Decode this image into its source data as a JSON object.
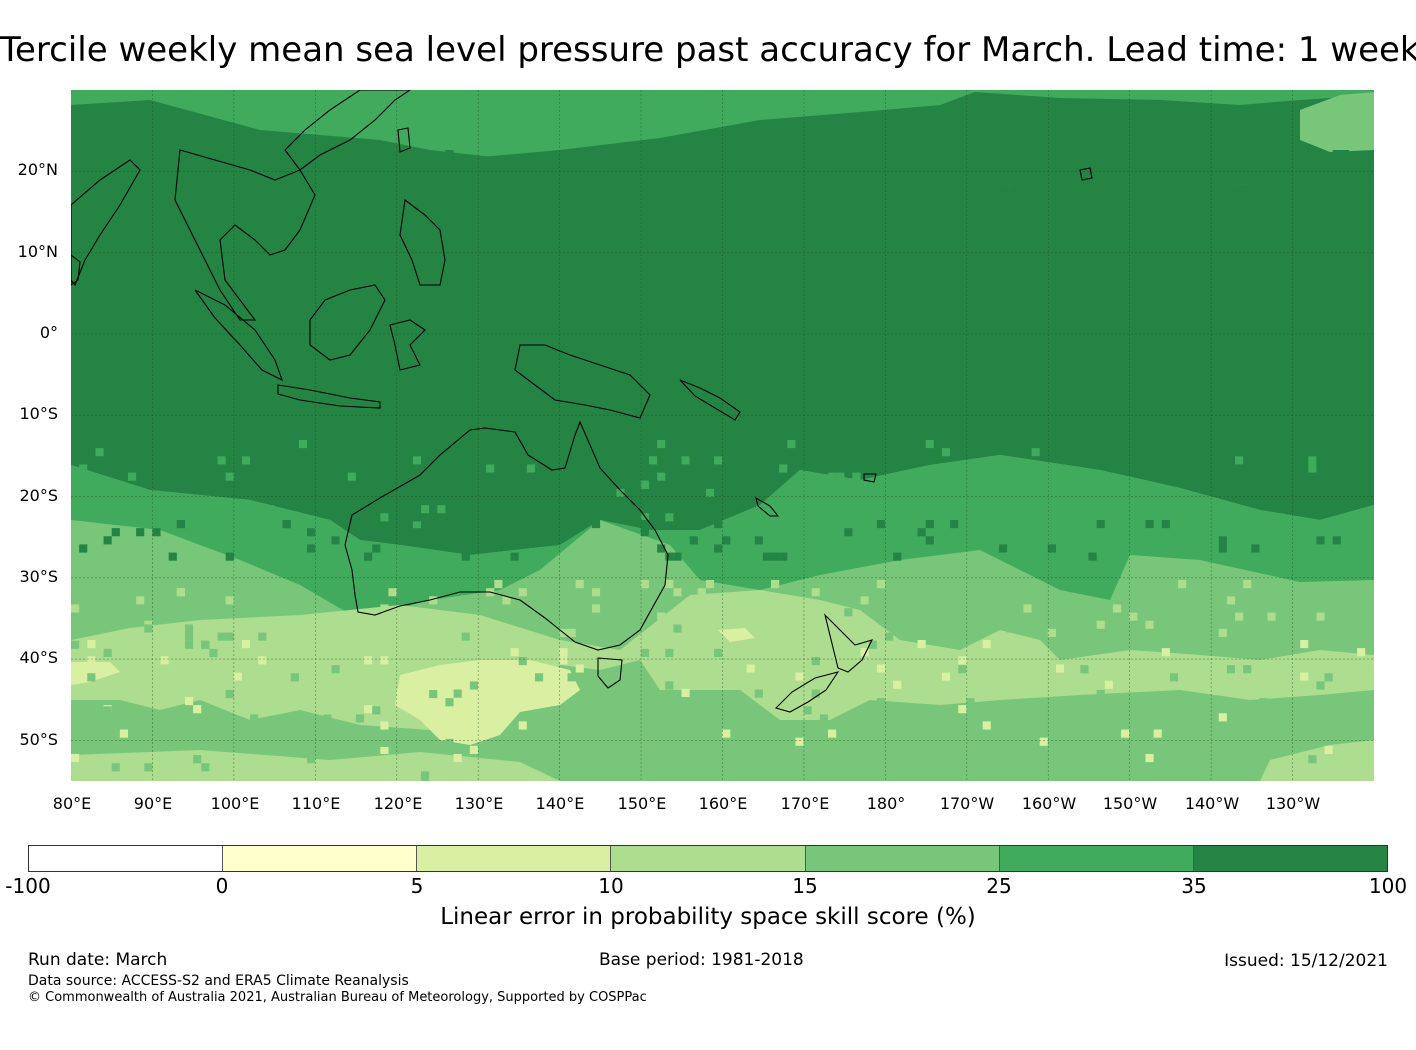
{
  "title": "Tercile weekly mean sea level pressure past accuracy for March. Lead time: 1 week",
  "map": {
    "projection": "equirectangular",
    "lon_range": [
      80,
      240
    ],
    "lat_range": [
      -55,
      30
    ],
    "lat_labels": [
      "20°N",
      "10°N",
      "0°",
      "10°S",
      "20°S",
      "30°S",
      "40°S",
      "50°S"
    ],
    "lon_labels": [
      "80°E",
      "90°E",
      "100°E",
      "110°E",
      "120°E",
      "130°E",
      "140°E",
      "150°E",
      "160°E",
      "170°E",
      "180°",
      "170°W",
      "160°W",
      "150°W",
      "140°W",
      "130°W"
    ],
    "gridline_color": "#1a4d1a",
    "coastline_color": "#000000",
    "skill_pattern": "highest skill in a broad tropical band roughly 22°S–18°N, decreasing toward the southern mid-latitudes"
  },
  "colorbar": {
    "tick_labels": [
      "-100",
      "0",
      "5",
      "10",
      "15",
      "25",
      "35",
      "100"
    ],
    "colors": [
      "#ffffff",
      "#ffffcc",
      "#d9f0a3",
      "#addd8e",
      "#78c679",
      "#41ab5d",
      "#238443"
    ],
    "label": "Linear error in probability space skill score (%)"
  },
  "footer": {
    "run_date": "Run date: March",
    "base_period": "Base period: 1981-2018",
    "issued": "Issued: 15/12/2021",
    "data_source": "Data source: ACCESS-S2 and ERA5 Climate Reanalysis",
    "copyright": "© Commonwealth of Australia 2021, Australian Bureau of Meteorology, Supported by COSPPac"
  }
}
